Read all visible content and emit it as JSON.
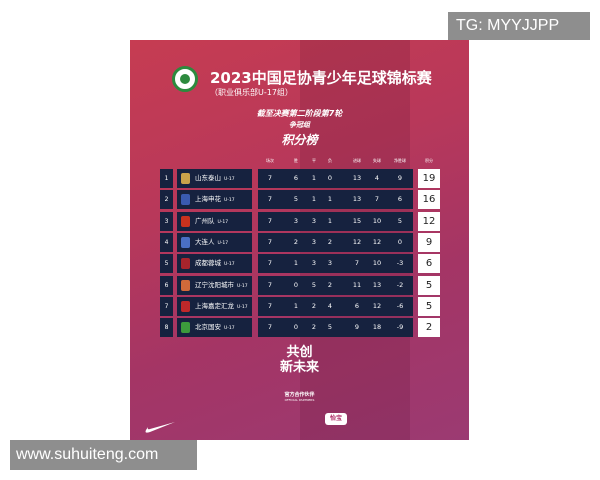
{
  "watermarks": {
    "top": "TG: MYYJJPP",
    "bottom": "www.suhuiteng.com"
  },
  "poster": {
    "title": "2023中国足协青少年足球锦标赛",
    "subtitle": "（职业俱乐部U-17组）",
    "round": "截至决赛第二阶段第7轮",
    "group": "争冠组",
    "heading": "积分榜",
    "headers": [
      "场次",
      "胜",
      "平",
      "负",
      "进球",
      "失球",
      "净胜球",
      "积分"
    ],
    "suffix": "U-17",
    "rows": [
      {
        "rank": "1",
        "team": "山东泰山",
        "played": "7",
        "w": "6",
        "d": "1",
        "l": "0",
        "gf": "13",
        "ga": "4",
        "gd": "9",
        "pts": "19",
        "color": "#c9a24a"
      },
      {
        "rank": "2",
        "team": "上海申花",
        "played": "7",
        "w": "5",
        "d": "1",
        "l": "1",
        "gf": "13",
        "ga": "7",
        "gd": "6",
        "pts": "16",
        "color": "#3a5ab0"
      },
      {
        "rank": "3",
        "team": "广州队",
        "played": "7",
        "w": "3",
        "d": "3",
        "l": "1",
        "gf": "15",
        "ga": "10",
        "gd": "5",
        "pts": "12",
        "color": "#c8321e"
      },
      {
        "rank": "4",
        "team": "大连人",
        "played": "7",
        "w": "2",
        "d": "3",
        "l": "2",
        "gf": "12",
        "ga": "12",
        "gd": "0",
        "pts": "9",
        "color": "#4a6fc4"
      },
      {
        "rank": "5",
        "team": "成都蓉城",
        "played": "7",
        "w": "1",
        "d": "3",
        "l": "3",
        "gf": "7",
        "ga": "10",
        "gd": "-3",
        "pts": "6",
        "color": "#a8242c"
      },
      {
        "rank": "6",
        "team": "辽宁沈阳城市",
        "played": "7",
        "w": "0",
        "d": "5",
        "l": "2",
        "gf": "11",
        "ga": "13",
        "gd": "-2",
        "pts": "5",
        "color": "#d06a3a"
      },
      {
        "rank": "7",
        "team": "上海嘉定汇龙",
        "played": "7",
        "w": "1",
        "d": "2",
        "l": "4",
        "gf": "6",
        "ga": "12",
        "gd": "-6",
        "pts": "5",
        "color": "#c0282a"
      },
      {
        "rank": "8",
        "team": "北京国安",
        "played": "7",
        "w": "0",
        "d": "2",
        "l": "5",
        "gf": "9",
        "ga": "18",
        "gd": "-9",
        "pts": "2",
        "color": "#3c9a3c"
      }
    ],
    "slogan_line1": "共创",
    "slogan_line2": "新未来",
    "partners_label": "官方合作伙伴",
    "partners_label_en": "OFFICIAL PARTNERS",
    "partner_brand": "怡宝"
  }
}
